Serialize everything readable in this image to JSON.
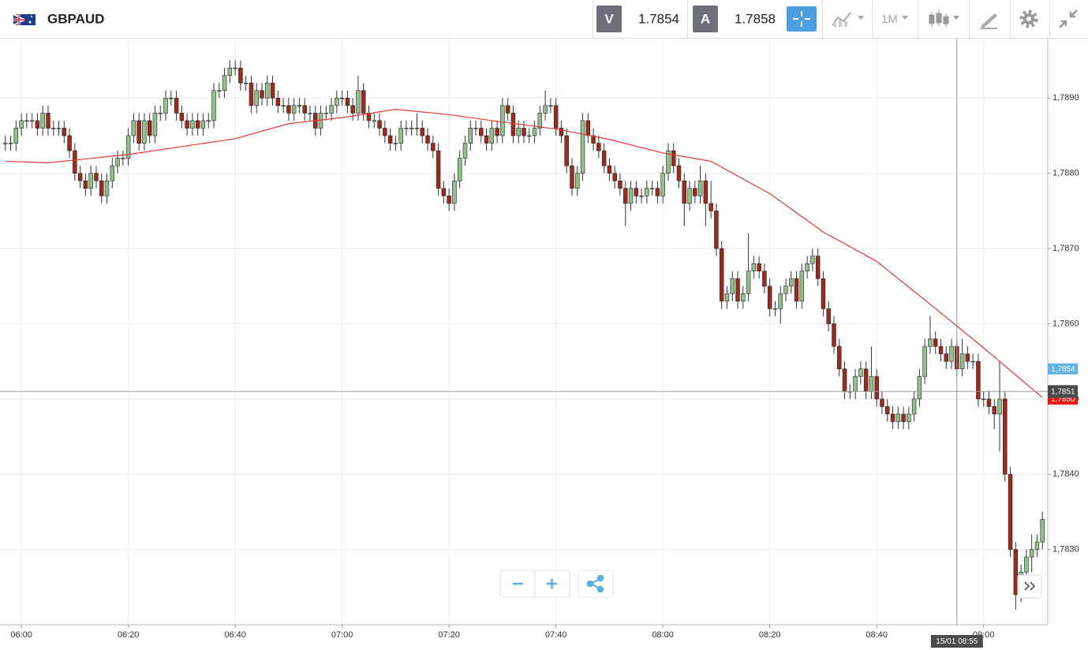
{
  "header": {
    "symbol": "GBPAUD",
    "bid_label": "V",
    "bid": 1.7854,
    "ask_label": "A",
    "ask": 1.7858,
    "timeframe": "1M"
  },
  "chart_data": {
    "type": "candlestick",
    "x": [
      "05:57",
      "05:58",
      "05:59",
      "06:00",
      "06:01",
      "06:02",
      "06:03",
      "06:04",
      "06:05",
      "06:06",
      "06:07",
      "06:08",
      "06:09",
      "06:10",
      "06:11",
      "06:12",
      "06:13",
      "06:14",
      "06:15",
      "06:16",
      "06:17",
      "06:18",
      "06:19",
      "06:20",
      "06:21",
      "06:22",
      "06:23",
      "06:24",
      "06:25",
      "06:26",
      "06:27",
      "06:28",
      "06:29",
      "06:30",
      "06:31",
      "06:32",
      "06:33",
      "06:34",
      "06:35",
      "06:36",
      "06:37",
      "06:38",
      "06:39",
      "06:40",
      "06:41",
      "06:42",
      "06:43",
      "06:44",
      "06:45",
      "06:46",
      "06:47",
      "06:48",
      "06:49",
      "06:50",
      "06:51",
      "06:52",
      "06:53",
      "06:54",
      "06:55",
      "06:56",
      "06:57",
      "06:58",
      "06:59",
      "07:00",
      "07:01",
      "07:02",
      "07:03",
      "07:04",
      "07:05",
      "07:06",
      "07:07",
      "07:08",
      "07:09",
      "07:10",
      "07:11",
      "07:12",
      "07:13",
      "07:14",
      "07:15",
      "07:16",
      "07:17",
      "07:18",
      "07:19",
      "07:20",
      "07:21",
      "07:22",
      "07:23",
      "07:24",
      "07:25",
      "07:26",
      "07:27",
      "07:28",
      "07:29",
      "07:30",
      "07:31",
      "07:32",
      "07:33",
      "07:34",
      "07:35",
      "07:36",
      "07:37",
      "07:38",
      "07:39",
      "07:40",
      "07:41",
      "07:42",
      "07:43",
      "07:44",
      "07:45",
      "07:46",
      "07:47",
      "07:48",
      "07:49",
      "07:50",
      "07:51",
      "07:52",
      "07:53",
      "07:54",
      "07:55",
      "07:56",
      "07:57",
      "07:58",
      "07:59",
      "08:00",
      "08:01",
      "08:02",
      "08:03",
      "08:04",
      "08:05",
      "08:06",
      "08:07",
      "08:08",
      "08:09",
      "08:10",
      "08:11",
      "08:12",
      "08:13",
      "08:14",
      "08:15",
      "08:16",
      "08:17",
      "08:18",
      "08:19",
      "08:20",
      "08:21",
      "08:22",
      "08:23",
      "08:24",
      "08:25",
      "08:26",
      "08:27",
      "08:28",
      "08:29",
      "08:30",
      "08:31",
      "08:32",
      "08:33",
      "08:34",
      "08:35",
      "08:36",
      "08:37",
      "08:38",
      "08:39",
      "08:40",
      "08:41",
      "08:42",
      "08:43",
      "08:44",
      "08:45",
      "08:46",
      "08:47",
      "08:48",
      "08:49",
      "08:50",
      "08:51",
      "08:52",
      "08:53",
      "08:54",
      "08:55",
      "08:56",
      "08:57",
      "08:58",
      "08:59",
      "09:00",
      "09:01",
      "09:02",
      "09:03",
      "09:04",
      "09:05",
      "09:06",
      "09:07",
      "09:08",
      "09:09",
      "09:10",
      "09:11"
    ],
    "open": [
      1.7884,
      1.7884,
      1.7884,
      1.7886,
      1.7887,
      1.7887,
      1.7887,
      1.7886,
      1.7888,
      1.7886,
      1.7886,
      1.7886,
      1.7885,
      1.7883,
      1.788,
      1.7879,
      1.7878,
      1.788,
      1.7879,
      1.7877,
      1.7879,
      1.7881,
      1.7882,
      1.7882,
      1.7885,
      1.7887,
      1.7884,
      1.7887,
      1.7885,
      1.7888,
      1.7888,
      1.789,
      1.789,
      1.7888,
      1.7887,
      1.7886,
      1.7887,
      1.7886,
      1.7887,
      1.7887,
      1.7891,
      1.7891,
      1.7893,
      1.7894,
      1.7894,
      1.7892,
      1.7892,
      1.7889,
      1.7891,
      1.789,
      1.7892,
      1.789,
      1.7889,
      1.7889,
      1.7888,
      1.7889,
      1.7889,
      1.7888,
      1.7888,
      1.7886,
      1.7888,
      1.7888,
      1.7889,
      1.789,
      1.789,
      1.7889,
      1.7888,
      1.7891,
      1.7888,
      1.7887,
      1.7887,
      1.7886,
      1.7885,
      1.7884,
      1.7884,
      1.7886,
      1.7886,
      1.7886,
      1.7886,
      1.7885,
      1.7884,
      1.7883,
      1.7878,
      1.7877,
      1.7876,
      1.7879,
      1.7882,
      1.7884,
      1.7886,
      1.7886,
      1.7885,
      1.7884,
      1.7886,
      1.7885,
      1.7889,
      1.7888,
      1.7885,
      1.7886,
      1.7885,
      1.7885,
      1.7886,
      1.7888,
      1.7889,
      1.7889,
      1.7886,
      1.7885,
      1.7881,
      1.7878,
      1.788,
      1.7887,
      1.7885,
      1.7884,
      1.7883,
      1.7881,
      1.788,
      1.7879,
      1.7878,
      1.7876,
      1.7878,
      1.7877,
      1.7877,
      1.7878,
      1.7878,
      1.7877,
      1.788,
      1.7883,
      1.7881,
      1.7879,
      1.7876,
      1.7878,
      1.7877,
      1.7879,
      1.7876,
      1.7875,
      1.787,
      1.7863,
      1.7864,
      1.7866,
      1.7863,
      1.7864,
      1.7867,
      1.7868,
      1.7867,
      1.7865,
      1.7862,
      1.7862,
      1.7864,
      1.7865,
      1.7866,
      1.7863,
      1.7867,
      1.7868,
      1.7869,
      1.7866,
      1.7862,
      1.786,
      1.7857,
      1.7854,
      1.7851,
      1.7851,
      1.7853,
      1.7854,
      1.7851,
      1.7853,
      1.785,
      1.7849,
      1.7848,
      1.7847,
      1.7848,
      1.7847,
      1.7848,
      1.785,
      1.7853,
      1.7857,
      1.7858,
      1.7857,
      1.7856,
      1.7855,
      1.7857,
      1.7854,
      1.7856,
      1.7855,
      1.7855,
      1.785,
      1.785,
      1.7849,
      1.7848,
      1.785,
      1.784,
      1.783,
      1.7824,
      1.7827,
      1.7829,
      1.783,
      1.7831
    ],
    "high": [
      1.7885,
      1.7885,
      1.7887,
      1.7888,
      1.7888,
      1.7888,
      1.7888,
      1.7889,
      1.7889,
      1.7887,
      1.7887,
      1.7887,
      1.7886,
      1.7884,
      1.7881,
      1.788,
      1.7881,
      1.7881,
      1.788,
      1.788,
      1.7882,
      1.7883,
      1.7883,
      1.7886,
      1.7888,
      1.7888,
      1.7888,
      1.7888,
      1.7889,
      1.7889,
      1.7891,
      1.7891,
      1.7891,
      1.7889,
      1.7888,
      1.7888,
      1.7888,
      1.7888,
      1.7888,
      1.7892,
      1.7892,
      1.7894,
      1.7895,
      1.7895,
      1.7895,
      1.7893,
      1.7893,
      1.7892,
      1.7892,
      1.7893,
      1.7893,
      1.7891,
      1.789,
      1.789,
      1.789,
      1.789,
      1.789,
      1.7889,
      1.7889,
      1.7889,
      1.7889,
      1.789,
      1.7891,
      1.7891,
      1.7891,
      1.789,
      1.7893,
      1.7892,
      1.7889,
      1.7888,
      1.7888,
      1.7887,
      1.7886,
      1.7885,
      1.7887,
      1.7887,
      1.7887,
      1.7888,
      1.7887,
      1.7886,
      1.7885,
      1.7884,
      1.7879,
      1.7878,
      1.788,
      1.7883,
      1.7885,
      1.7887,
      1.7887,
      1.7887,
      1.7886,
      1.7887,
      1.7887,
      1.789,
      1.789,
      1.7889,
      1.7887,
      1.7887,
      1.7886,
      1.7887,
      1.7889,
      1.7891,
      1.789,
      1.789,
      1.7887,
      1.7886,
      1.7882,
      1.7881,
      1.7888,
      1.7888,
      1.7886,
      1.7885,
      1.7884,
      1.7882,
      1.7881,
      1.788,
      1.7879,
      1.7879,
      1.7879,
      1.7878,
      1.7879,
      1.7879,
      1.7879,
      1.7881,
      1.7884,
      1.7884,
      1.7882,
      1.788,
      1.7879,
      1.7879,
      1.7881,
      1.788,
      1.7879,
      1.7876,
      1.7871,
      1.7865,
      1.7867,
      1.7867,
      1.7865,
      1.7872,
      1.7869,
      1.7869,
      1.7868,
      1.7866,
      1.7863,
      1.7865,
      1.7866,
      1.7867,
      1.7867,
      1.7868,
      1.7869,
      1.787,
      1.787,
      1.7867,
      1.7863,
      1.7861,
      1.7858,
      1.7855,
      1.7852,
      1.7854,
      1.7855,
      1.7855,
      1.7857,
      1.7854,
      1.7851,
      1.785,
      1.7849,
      1.7849,
      1.7849,
      1.7849,
      1.7851,
      1.7854,
      1.7858,
      1.7861,
      1.7859,
      1.7858,
      1.7857,
      1.7858,
      1.7858,
      1.7858,
      1.7857,
      1.7856,
      1.7856,
      1.7851,
      1.7851,
      1.785,
      1.7855,
      1.7851,
      1.7841,
      1.7831,
      1.7828,
      1.783,
      1.7832,
      1.7832,
      1.7835
    ],
    "low": [
      1.7883,
      1.7883,
      1.7883,
      1.7885,
      1.7886,
      1.7886,
      1.7885,
      1.7885,
      1.7885,
      1.7885,
      1.7885,
      1.7884,
      1.7882,
      1.7879,
      1.7878,
      1.7877,
      1.7877,
      1.7878,
      1.7876,
      1.7876,
      1.7878,
      1.788,
      1.7881,
      1.7881,
      1.7884,
      1.7883,
      1.7883,
      1.7884,
      1.7884,
      1.7887,
      1.7887,
      1.7889,
      1.7887,
      1.7886,
      1.7885,
      1.7885,
      1.7885,
      1.7885,
      1.7886,
      1.7886,
      1.789,
      1.789,
      1.7892,
      1.7893,
      1.7891,
      1.7891,
      1.7888,
      1.7888,
      1.7889,
      1.7889,
      1.7889,
      1.7888,
      1.7888,
      1.7887,
      1.7887,
      1.7888,
      1.7887,
      1.7887,
      1.7885,
      1.7885,
      1.7887,
      1.7887,
      1.7888,
      1.7889,
      1.7888,
      1.7887,
      1.7887,
      1.7887,
      1.7886,
      1.7886,
      1.7885,
      1.7884,
      1.7883,
      1.7883,
      1.7883,
      1.7885,
      1.7885,
      1.7885,
      1.7884,
      1.7883,
      1.7882,
      1.7877,
      1.7876,
      1.7875,
      1.7875,
      1.7878,
      1.7881,
      1.7883,
      1.7885,
      1.7884,
      1.7883,
      1.7883,
      1.7884,
      1.7884,
      1.7887,
      1.7884,
      1.7884,
      1.7884,
      1.7884,
      1.7884,
      1.7885,
      1.7887,
      1.7888,
      1.7885,
      1.7884,
      1.788,
      1.7877,
      1.7877,
      1.7879,
      1.7884,
      1.7883,
      1.7882,
      1.788,
      1.7879,
      1.7878,
      1.7877,
      1.7873,
      1.7875,
      1.7876,
      1.7876,
      1.7876,
      1.7877,
      1.7876,
      1.7876,
      1.7879,
      1.788,
      1.7878,
      1.7873,
      1.7875,
      1.7876,
      1.7876,
      1.7873,
      1.7874,
      1.7869,
      1.7862,
      1.7862,
      1.7863,
      1.7862,
      1.7862,
      1.7863,
      1.7866,
      1.7866,
      1.7864,
      1.7861,
      1.7861,
      1.786,
      1.7863,
      1.7864,
      1.7862,
      1.7862,
      1.7866,
      1.7867,
      1.7865,
      1.7861,
      1.7859,
      1.7856,
      1.7853,
      1.785,
      1.785,
      1.785,
      1.7852,
      1.785,
      1.785,
      1.7849,
      1.7848,
      1.7847,
      1.7846,
      1.7846,
      1.7846,
      1.7846,
      1.7847,
      1.7849,
      1.7852,
      1.7856,
      1.7856,
      1.7855,
      1.7854,
      1.7854,
      1.7853,
      1.7853,
      1.7854,
      1.7854,
      1.7849,
      1.7849,
      1.7848,
      1.7846,
      1.7843,
      1.7839,
      1.7829,
      1.7822,
      1.7823,
      1.7826,
      1.7827,
      1.7829,
      1.783
    ],
    "close": [
      1.7884,
      1.7884,
      1.7886,
      1.7887,
      1.7887,
      1.7887,
      1.7886,
      1.7888,
      1.7886,
      1.7886,
      1.7886,
      1.7885,
      1.7883,
      1.788,
      1.7879,
      1.7878,
      1.788,
      1.7879,
      1.7877,
      1.7879,
      1.7881,
      1.7882,
      1.7882,
      1.7885,
      1.7887,
      1.7884,
      1.7887,
      1.7885,
      1.7888,
      1.7888,
      1.789,
      1.789,
      1.7888,
      1.7887,
      1.7886,
      1.7887,
      1.7886,
      1.7887,
      1.7887,
      1.7891,
      1.7891,
      1.7893,
      1.7894,
      1.7894,
      1.7892,
      1.7892,
      1.7889,
      1.7891,
      1.789,
      1.7892,
      1.789,
      1.7889,
      1.7889,
      1.7888,
      1.7889,
      1.7889,
      1.7888,
      1.7888,
      1.7886,
      1.7888,
      1.7888,
      1.7889,
      1.789,
      1.789,
      1.7889,
      1.7888,
      1.7891,
      1.7888,
      1.7887,
      1.7887,
      1.7886,
      1.7885,
      1.7884,
      1.7884,
      1.7886,
      1.7886,
      1.7886,
      1.7886,
      1.7885,
      1.7884,
      1.7883,
      1.7878,
      1.7877,
      1.7876,
      1.7879,
      1.7882,
      1.7884,
      1.7886,
      1.7886,
      1.7885,
      1.7884,
      1.7886,
      1.7885,
      1.7889,
      1.7888,
      1.7885,
      1.7886,
      1.7885,
      1.7885,
      1.7886,
      1.7888,
      1.7889,
      1.7889,
      1.7886,
      1.7885,
      1.7881,
      1.7878,
      1.788,
      1.7887,
      1.7885,
      1.7884,
      1.7883,
      1.7881,
      1.788,
      1.7879,
      1.7878,
      1.7876,
      1.7878,
      1.7877,
      1.7877,
      1.7878,
      1.7878,
      1.7877,
      1.788,
      1.7883,
      1.7881,
      1.7879,
      1.7876,
      1.7878,
      1.7877,
      1.7879,
      1.7876,
      1.7875,
      1.787,
      1.7863,
      1.7864,
      1.7866,
      1.7863,
      1.7864,
      1.7867,
      1.7868,
      1.7867,
      1.7865,
      1.7862,
      1.7862,
      1.7864,
      1.7865,
      1.7866,
      1.7863,
      1.7867,
      1.7868,
      1.7869,
      1.7866,
      1.7862,
      1.786,
      1.7857,
      1.7854,
      1.7851,
      1.7851,
      1.7853,
      1.7854,
      1.7851,
      1.7853,
      1.785,
      1.7849,
      1.7848,
      1.7847,
      1.7848,
      1.7847,
      1.7848,
      1.785,
      1.7853,
      1.7857,
      1.7858,
      1.7857,
      1.7856,
      1.7855,
      1.7857,
      1.7854,
      1.7856,
      1.7855,
      1.7855,
      1.785,
      1.785,
      1.7849,
      1.7848,
      1.785,
      1.784,
      1.783,
      1.7824,
      1.7827,
      1.7829,
      1.783,
      1.7831,
      1.7834
    ],
    "up_color": "#92c08c",
    "down_color": "#9b2b1d",
    "moving_average": {
      "color": "#e03a32",
      "x": [
        "05:57",
        "06:05",
        "06:20",
        "06:40",
        "06:50",
        "07:00",
        "07:10",
        "07:20",
        "07:30",
        "07:40",
        "07:50",
        "08:00",
        "08:09",
        "08:20",
        "08:30",
        "08:40",
        "08:50",
        "09:00",
        "09:11"
      ],
      "values": [
        1.78816,
        1.78814,
        1.78825,
        1.78846,
        1.78866,
        1.78874,
        1.78885,
        1.78878,
        1.78868,
        1.78859,
        1.78845,
        1.78827,
        1.78816,
        1.78773,
        1.78722,
        1.78683,
        1.78626,
        1.78568,
        1.78502
      ]
    },
    "xlim": [
      "05:56",
      "09:12"
    ],
    "xticks": [
      "06:00",
      "06:20",
      "06:40",
      "07:00",
      "07:20",
      "07:40",
      "08:00",
      "08:20",
      "08:40",
      "09:00"
    ],
    "ylim": [
      1.782,
      1.7898
    ],
    "yticks": [
      {
        "value": 1.783,
        "label": "1,7830"
      },
      {
        "value": 1.784,
        "label": "1,7840"
      },
      {
        "value": 1.785,
        "label": "1,7850"
      },
      {
        "value": 1.786,
        "label": "1,7860"
      },
      {
        "value": 1.787,
        "label": "1,7870"
      },
      {
        "value": 1.788,
        "label": "1,7880"
      },
      {
        "value": 1.789,
        "label": "1,7890"
      }
    ],
    "grid": true,
    "price_tags": [
      {
        "value": 1.7854,
        "label": "1,7854",
        "color": "#5fb2e3"
      },
      {
        "value": 1.785,
        "label": "1,7850",
        "color": "#e8140c"
      }
    ],
    "crosshair": {
      "time": "08:55",
      "time_label": "15/01 08:55",
      "price": 1.7851,
      "price_label": "1,7851"
    }
  }
}
